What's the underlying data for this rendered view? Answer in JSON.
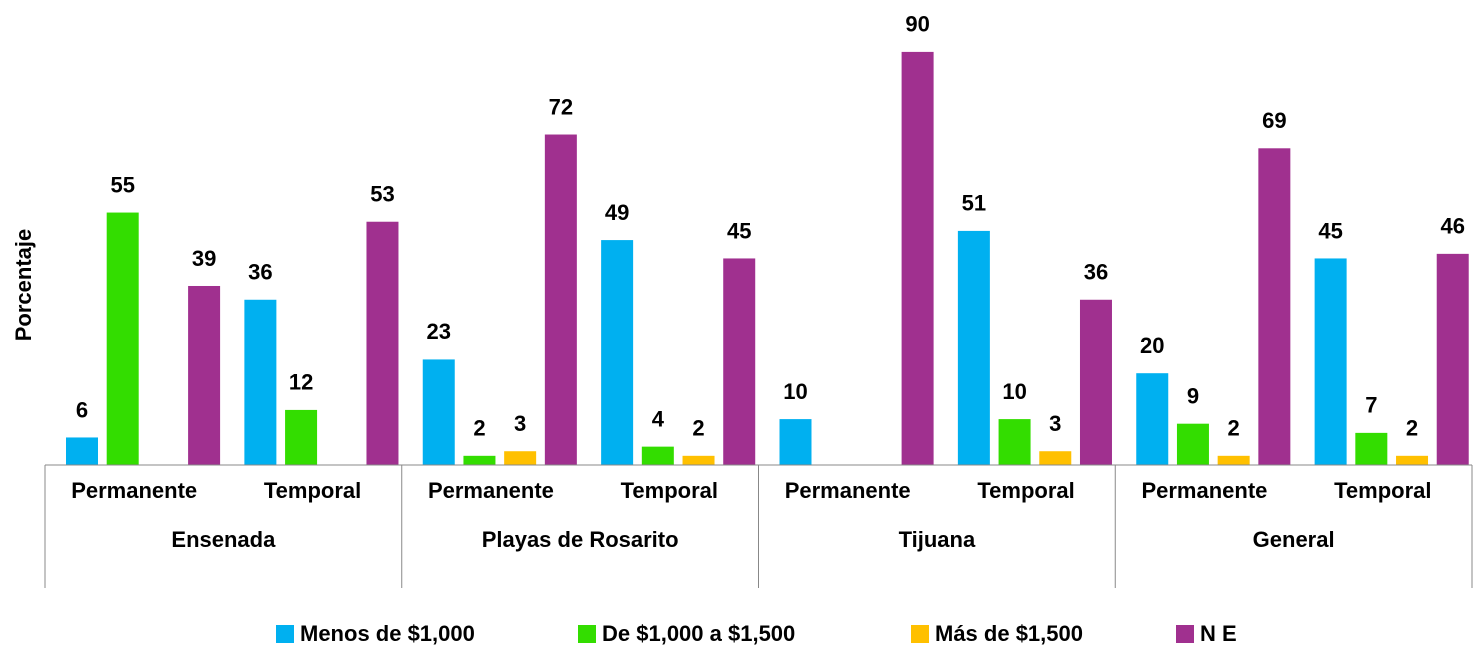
{
  "chart_data": {
    "type": "bar",
    "y_label": "Porcentaje",
    "categories": [
      "Permanente",
      "Temporal",
      "Permanente",
      "Temporal",
      "Permanente",
      "Temporal",
      "Permanente",
      "Temporal"
    ],
    "groups": [
      "Ensenada",
      "Playas de Rosarito",
      "Tijuana",
      "General"
    ],
    "series": [
      {
        "name": "Menos de $1,000",
        "color": "#00b0f0",
        "values": [
          6,
          36,
          23,
          49,
          10,
          51,
          20,
          45
        ]
      },
      {
        "name": "De $1,000 a $1,500",
        "color": "#33dd00",
        "values": [
          55,
          12,
          2,
          4,
          null,
          10,
          9,
          7
        ]
      },
      {
        "name": "Más de $1,500",
        "color": "#ffc000",
        "values": [
          null,
          null,
          3,
          2,
          null,
          3,
          2,
          2
        ]
      },
      {
        "name": "N E",
        "color": "#a0308f",
        "values": [
          39,
          53,
          72,
          45,
          90,
          36,
          69,
          46
        ]
      }
    ],
    "ylim": [
      0,
      100
    ],
    "legend": "bottom"
  }
}
